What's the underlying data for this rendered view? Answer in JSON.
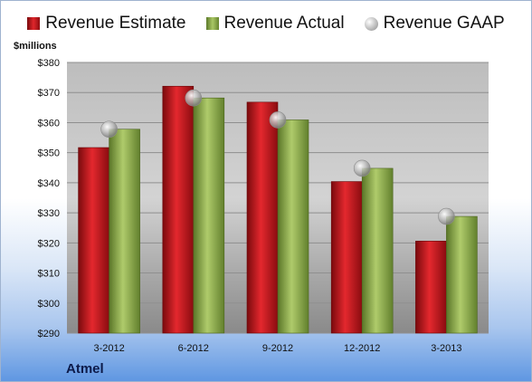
{
  "unit_label": "$millions",
  "company": "Atmel",
  "legend": {
    "estimate": "Revenue Estimate",
    "actual": "Revenue Actual",
    "gaap": "Revenue GAAP"
  },
  "colors": {
    "estimate": "#d4232a",
    "actual": "#9bbb59",
    "gaap": "#c0c0c0"
  },
  "chart_data": {
    "type": "bar",
    "categories": [
      "3-2012",
      "6-2012",
      "9-2012",
      "12-2012",
      "3-2013"
    ],
    "series": [
      {
        "name": "Revenue Estimate",
        "values": [
          351.7,
          372.1,
          366.8,
          340.4,
          320.6
        ]
      },
      {
        "name": "Revenue Actual",
        "values": [
          357.8,
          368.2,
          360.9,
          344.8,
          328.8
        ]
      },
      {
        "name": "Revenue GAAP",
        "values": [
          357.8,
          368.2,
          360.9,
          344.8,
          328.8
        ],
        "style": "bubble"
      }
    ],
    "yticks": [
      "$290",
      "$300",
      "$310",
      "$320",
      "$330",
      "$340",
      "$350",
      "$360",
      "$370",
      "$380"
    ],
    "ylim": [
      290,
      380
    ],
    "ylabel": "$millions",
    "legend_position": "top",
    "grid": true
  }
}
